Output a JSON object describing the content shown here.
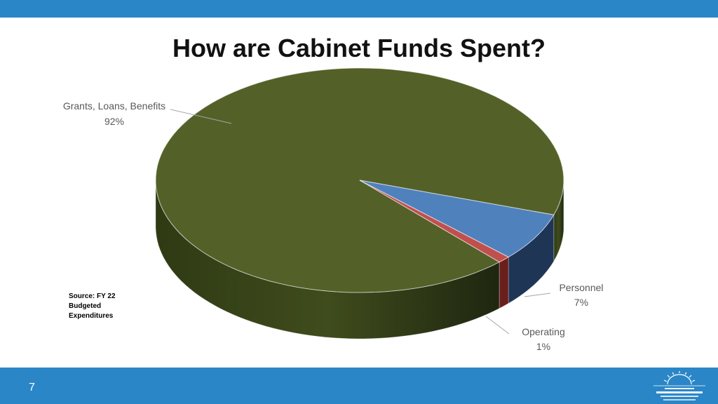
{
  "slide": {
    "title": "How are Cabinet Funds Spent?",
    "source_note": "Source: FY 22 Budgeted Expenditures",
    "page_number": "7"
  },
  "colors": {
    "bar": "#2a86c7",
    "grants": "#536128",
    "personnel": "#4f81bd",
    "operating": "#c0504d"
  },
  "chart_data": {
    "type": "pie",
    "title": "",
    "categories": [
      "Grants, Loans, Benefits",
      "Personnel",
      "Operating"
    ],
    "values": [
      92,
      7,
      1
    ],
    "value_labels": [
      "92%",
      "7%",
      "1%"
    ],
    "unit": "%",
    "style": "3d",
    "legend": "none"
  }
}
